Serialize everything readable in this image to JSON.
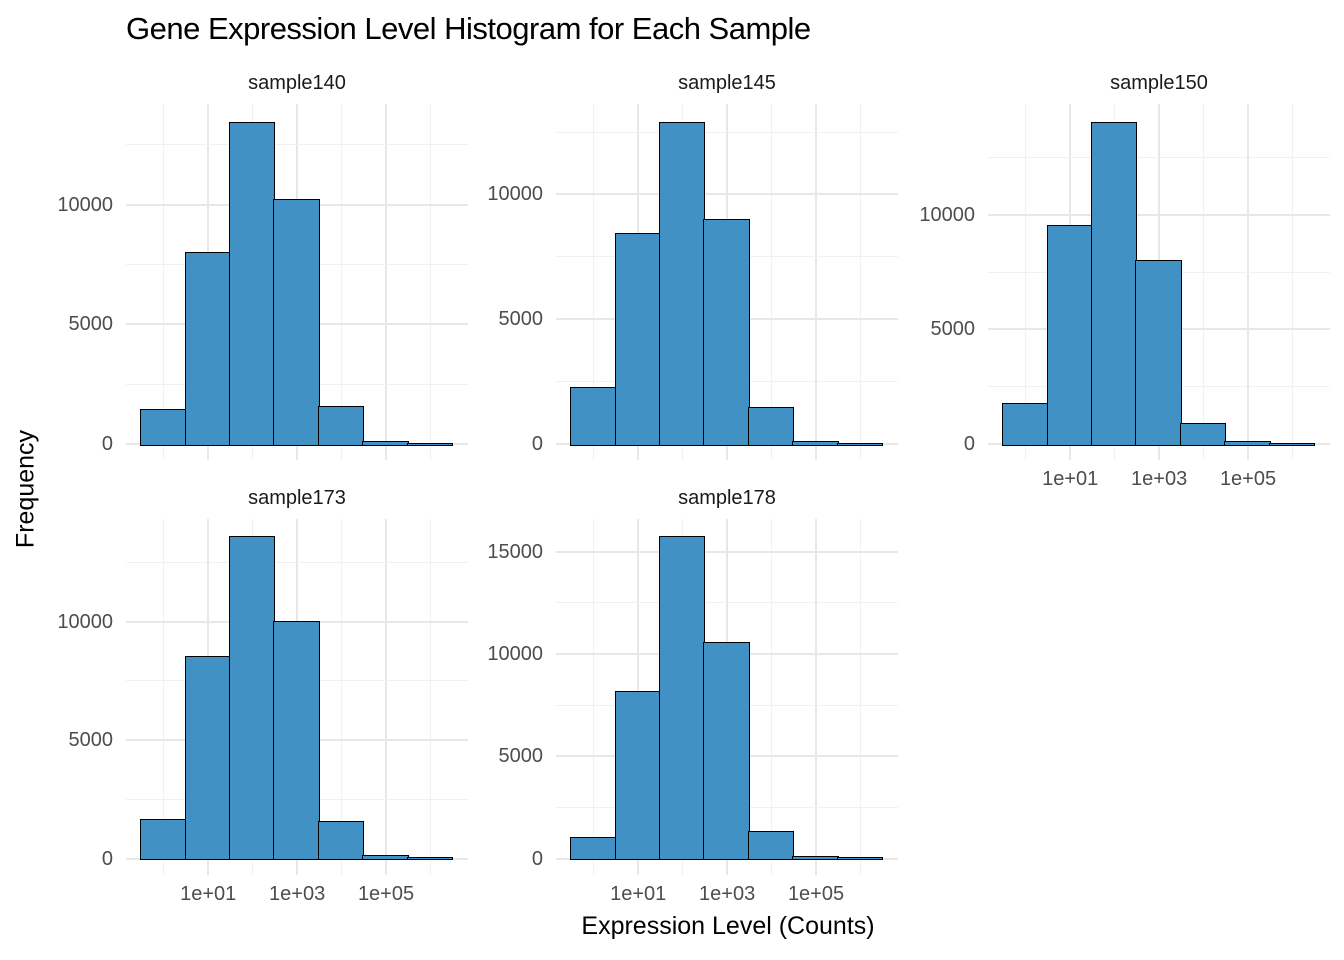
{
  "chart_data": {
    "type": "bar",
    "subtype": "faceted-histogram",
    "title": "Gene Expression Level Histogram for Each Sample",
    "xlabel": "Expression Level (Counts)",
    "ylabel": "Frequency",
    "x_scale": "log10",
    "grid": true,
    "legend": false,
    "x_tick_labels": [
      "1e+01",
      "1e+03",
      "1e+05"
    ],
    "x_tick_log_values": [
      1,
      3,
      5
    ],
    "x_minor_log_values": [
      0,
      2,
      4,
      6
    ],
    "bin_log_edges": [
      -0.5,
      0.5,
      1.5,
      2.5,
      3.5,
      4.5,
      5.5,
      6.5
    ],
    "bin_centers": [
      1,
      10,
      100,
      1000,
      10000,
      100000,
      1000000
    ],
    "y_minor_step": 2500,
    "facets": [
      {
        "label": "sample140",
        "row": 0,
        "col": 0,
        "x_axis_visible": false,
        "y_ticks": [
          0,
          5000,
          10000
        ],
        "frequencies": [
          1450,
          8000,
          13450,
          10200,
          1550,
          120,
          30
        ]
      },
      {
        "label": "sample145",
        "row": 0,
        "col": 1,
        "x_axis_visible": false,
        "y_ticks": [
          0,
          5000,
          10000
        ],
        "frequencies": [
          2250,
          8450,
          12900,
          9000,
          1450,
          120,
          30
        ]
      },
      {
        "label": "sample150",
        "row": 0,
        "col": 2,
        "x_axis_visible": true,
        "y_ticks": [
          0,
          5000,
          10000
        ],
        "frequencies": [
          1750,
          9550,
          14050,
          8000,
          900,
          100,
          30
        ]
      },
      {
        "label": "sample173",
        "row": 1,
        "col": 0,
        "x_axis_visible": true,
        "y_ticks": [
          0,
          5000,
          10000
        ],
        "frequencies": [
          1650,
          8550,
          13600,
          10000,
          1550,
          120,
          30
        ]
      },
      {
        "label": "sample178",
        "row": 1,
        "col": 1,
        "x_axis_visible": true,
        "y_ticks": [
          0,
          5000,
          10000,
          15000
        ],
        "frequencies": [
          1050,
          8150,
          15750,
          10550,
          1300,
          100,
          30
        ]
      }
    ],
    "colors": {
      "bar_fill": "#4191c5",
      "bar_stroke": "#000000",
      "grid_major": "#e7e7e7",
      "grid_minor": "#f1f1f1",
      "tick_text": "#4d4d4d",
      "facet_title_text": "#1a1a1a",
      "title_text": "#000000"
    }
  }
}
